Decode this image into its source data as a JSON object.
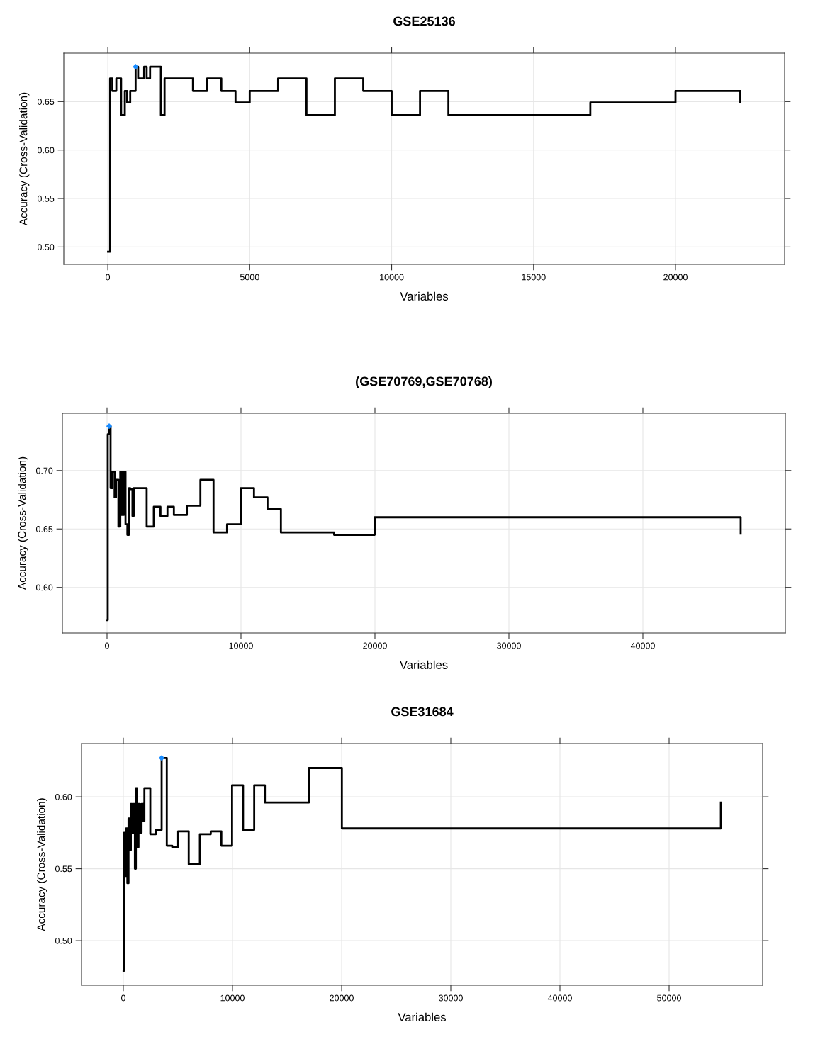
{
  "chart_data": [
    {
      "type": "step",
      "title": "GSE25136",
      "xlabel": "Variables",
      "ylabel": "Accuracy (Cross-Validation)",
      "xlim": [
        -1550,
        23845
      ],
      "ylim": [
        0.482,
        0.7
      ],
      "xticks": [
        0,
        5000,
        10000,
        15000,
        20000
      ],
      "yticks": [
        {
          "value": 0.5,
          "label": "0.50"
        },
        {
          "value": 0.55,
          "label": "0.55"
        },
        {
          "value": 0.6,
          "label": "0.60"
        },
        {
          "value": 0.65,
          "label": "0.65"
        }
      ],
      "grid": true,
      "series": [
        {
          "type": "step",
          "color": "#000000",
          "x": [
            10,
            80,
            160,
            300,
            470,
            600,
            680,
            790,
            980,
            1070,
            1280,
            1370,
            1490,
            1870,
            2000,
            3000,
            3500,
            4000,
            4500,
            5000,
            6000,
            7000,
            8000,
            9000,
            10000,
            11000,
            12000,
            17000,
            20000,
            22283
          ],
          "values": [
            0.495,
            0.674,
            0.661,
            0.674,
            0.636,
            0.661,
            0.649,
            0.661,
            0.686,
            0.674,
            0.686,
            0.674,
            0.686,
            0.636,
            0.674,
            0.661,
            0.674,
            0.661,
            0.649,
            0.661,
            0.674,
            0.636,
            0.674,
            0.661,
            0.636,
            0.661,
            0.636,
            0.649,
            0.661,
            0.649
          ]
        },
        {
          "type": "scatter",
          "color": "#1a8cff",
          "marker": "diamond",
          "x": [
            980
          ],
          "values": [
            0.686
          ]
        }
      ]
    },
    {
      "type": "step",
      "title": "(GSE70769,GSE70768)",
      "xlabel": "Variables",
      "ylabel": "Accuracy (Cross-Validation)",
      "xlim": [
        -3333,
        50635
      ],
      "ylim": [
        0.561,
        0.749
      ],
      "xticks": [
        0,
        10000,
        20000,
        30000,
        40000
      ],
      "yticks": [
        {
          "value": 0.6,
          "label": "0.60"
        },
        {
          "value": 0.65,
          "label": "0.65"
        },
        {
          "value": 0.7,
          "label": "0.70"
        }
      ],
      "grid": true,
      "series": [
        {
          "type": "step",
          "color": "#000000",
          "x": [
            10,
            53,
            160,
            265,
            405,
            565,
            670,
            850,
            990,
            1110,
            1250,
            1380,
            1520,
            1640,
            1730,
            1900,
            1990,
            2960,
            3490,
            3990,
            4510,
            4990,
            5960,
            6970,
            7950,
            8960,
            9980,
            10970,
            11980,
            12980,
            16950,
            19980,
            47300
          ],
          "values": [
            0.572,
            0.731,
            0.738,
            0.685,
            0.699,
            0.677,
            0.692,
            0.652,
            0.699,
            0.662,
            0.699,
            0.654,
            0.645,
            0.685,
            0.684,
            0.661,
            0.685,
            0.652,
            0.669,
            0.661,
            0.669,
            0.662,
            0.67,
            0.692,
            0.647,
            0.654,
            0.685,
            0.677,
            0.667,
            0.647,
            0.645,
            0.66,
            0.646
          ]
        },
        {
          "type": "scatter",
          "color": "#1a8cff",
          "marker": "diamond",
          "x": [
            160
          ],
          "values": [
            0.738
          ]
        }
      ]
    },
    {
      "type": "step",
      "title": "GSE31684",
      "xlabel": "Variables",
      "ylabel": "Accuracy (Cross-Validation)",
      "xlim": [
        -3831,
        58571
      ],
      "ylim": [
        0.469,
        0.637
      ],
      "xticks": [
        0,
        10000,
        20000,
        30000,
        40000,
        50000
      ],
      "yticks": [
        {
          "value": 0.5,
          "label": "0.50"
        },
        {
          "value": 0.55,
          "label": "0.55"
        },
        {
          "value": 0.6,
          "label": "0.60"
        }
      ],
      "grid": true,
      "series": [
        {
          "type": "step",
          "color": "#000000",
          "x": [
            20,
            65,
            150,
            260,
            370,
            475,
            585,
            690,
            800,
            910,
            1060,
            1150,
            1260,
            1390,
            1520,
            1670,
            1820,
            1930,
            2470,
            2990,
            3510,
            3980,
            4480,
            5020,
            5990,
            7010,
            8010,
            8980,
            9960,
            10970,
            11990,
            12970,
            17000,
            20020,
            54740
          ],
          "values": [
            0.479,
            0.575,
            0.545,
            0.578,
            0.54,
            0.585,
            0.563,
            0.595,
            0.575,
            0.595,
            0.55,
            0.606,
            0.565,
            0.595,
            0.575,
            0.595,
            0.583,
            0.606,
            0.574,
            0.577,
            0.627,
            0.566,
            0.565,
            0.576,
            0.553,
            0.574,
            0.576,
            0.566,
            0.608,
            0.577,
            0.608,
            0.596,
            0.62,
            0.578,
            0.596
          ]
        },
        {
          "type": "scatter",
          "color": "#1a8cff",
          "marker": "diamond",
          "x": [
            3510
          ],
          "values": [
            0.627
          ]
        }
      ]
    }
  ]
}
